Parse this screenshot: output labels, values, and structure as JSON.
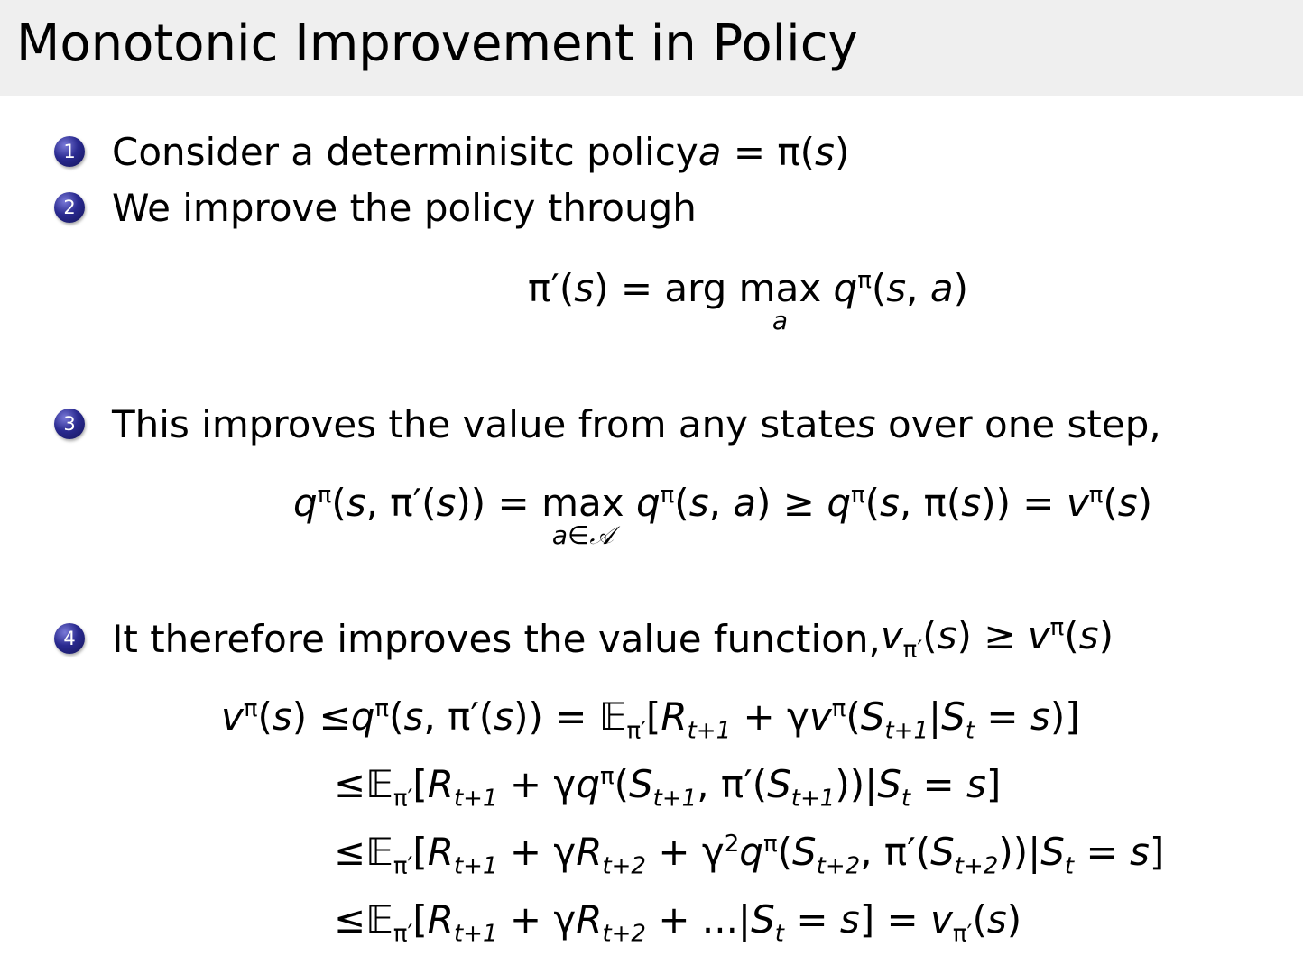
{
  "slide": {
    "title": "Monotonic Improvement in Policy",
    "bullet_color": "#2a2a90",
    "items": [
      {
        "number": "1",
        "text": "Consider a determinisitc policy ",
        "math": [
          [
            "a",
            "i"
          ],
          [
            " = π("
          ],
          [
            "s",
            "i"
          ],
          [
            ")"
          ]
        ]
      },
      {
        "number": "2",
        "text": "We improve the policy through",
        "math": []
      },
      {
        "number": "3",
        "text": "This improves the value from any state ",
        "math": [
          [
            "s",
            "i"
          ],
          [
            " over one step,"
          ]
        ]
      },
      {
        "number": "4",
        "text": "It therefore improves the value function, ",
        "math": [
          [
            "v",
            "i"
          ],
          [
            "π′",
            "sub"
          ],
          [
            "("
          ],
          [
            "s",
            "i"
          ],
          [
            ") ≥ "
          ],
          [
            "v",
            "i"
          ],
          [
            "π",
            "sup"
          ],
          [
            "("
          ],
          [
            "s",
            "i"
          ],
          [
            ")"
          ]
        ]
      }
    ],
    "equations": {
      "policy_improvement": {
        "lhs": [
          [
            "π′("
          ],
          [
            "s",
            "i"
          ],
          [
            ") = arg "
          ]
        ],
        "op": "max",
        "op_limit": "a",
        "rhs": [
          [
            "q",
            "i"
          ],
          [
            "π",
            "sup"
          ],
          [
            "("
          ],
          [
            "s",
            "i"
          ],
          [
            ", "
          ],
          [
            "a",
            "i"
          ],
          [
            ")"
          ]
        ]
      },
      "one_step": {
        "lhs": [
          [
            "q",
            "i"
          ],
          [
            "π",
            "sup"
          ],
          [
            "("
          ],
          [
            "s",
            "i"
          ],
          [
            ", π′("
          ],
          [
            "s",
            "i"
          ],
          [
            ")) = "
          ]
        ],
        "op": "max",
        "op_limit": "a∈𝒜",
        "rhs": [
          [
            "q",
            "i"
          ],
          [
            "π",
            "sup"
          ],
          [
            "("
          ],
          [
            "s",
            "i"
          ],
          [
            ", "
          ],
          [
            "a",
            "i"
          ],
          [
            ") ≥ "
          ],
          [
            "q",
            "i"
          ],
          [
            "π",
            "sup"
          ],
          [
            "("
          ],
          [
            "s",
            "i"
          ],
          [
            ", π("
          ],
          [
            "s",
            "i"
          ],
          [
            ")) = "
          ],
          [
            "v",
            "i"
          ],
          [
            "π",
            "sup"
          ],
          [
            "("
          ],
          [
            "s",
            "i"
          ],
          [
            ")"
          ]
        ]
      },
      "chain": [
        [
          [
            "v",
            "i"
          ],
          [
            "π",
            "sup"
          ],
          [
            "("
          ],
          [
            "s",
            "i"
          ],
          [
            ") ≤"
          ],
          [
            "q",
            "i"
          ],
          [
            "π",
            "sup"
          ],
          [
            "("
          ],
          [
            "s",
            "i"
          ],
          [
            ", π′("
          ],
          [
            "s",
            "i"
          ],
          [
            ")) = 𝔼"
          ],
          [
            "π′",
            "sub"
          ],
          [
            "["
          ],
          [
            "R",
            "i"
          ],
          [
            "t+1",
            "subi"
          ],
          [
            " + γ"
          ],
          [
            "v",
            "i"
          ],
          [
            "π",
            "sup"
          ],
          [
            "("
          ],
          [
            "S",
            "i"
          ],
          [
            "t+1",
            "subi"
          ],
          [
            "|"
          ],
          [
            "S",
            "i"
          ],
          [
            "t",
            "subi"
          ],
          [
            " = "
          ],
          [
            "s",
            "i"
          ],
          [
            ")]"
          ]
        ],
        [
          [
            "≤𝔼"
          ],
          [
            "π′",
            "sub"
          ],
          [
            "["
          ],
          [
            "R",
            "i"
          ],
          [
            "t+1",
            "subi"
          ],
          [
            " + γ"
          ],
          [
            "q",
            "i"
          ],
          [
            "π",
            "sup"
          ],
          [
            "("
          ],
          [
            "S",
            "i"
          ],
          [
            "t+1",
            "subi"
          ],
          [
            ", π′("
          ],
          [
            "S",
            "i"
          ],
          [
            "t+1",
            "subi"
          ],
          [
            "))|"
          ],
          [
            "S",
            "i"
          ],
          [
            "t",
            "subi"
          ],
          [
            " = "
          ],
          [
            "s",
            "i"
          ],
          [
            "]"
          ]
        ],
        [
          [
            "≤𝔼"
          ],
          [
            "π′",
            "sub"
          ],
          [
            "["
          ],
          [
            "R",
            "i"
          ],
          [
            "t+1",
            "subi"
          ],
          [
            " + γ"
          ],
          [
            "R",
            "i"
          ],
          [
            "t+2",
            "subi"
          ],
          [
            " + γ"
          ],
          [
            "2",
            "sup"
          ],
          [
            "q",
            "i"
          ],
          [
            "π",
            "sup"
          ],
          [
            "("
          ],
          [
            "S",
            "i"
          ],
          [
            "t+2",
            "subi"
          ],
          [
            ", π′("
          ],
          [
            "S",
            "i"
          ],
          [
            "t+2",
            "subi"
          ],
          [
            "))|"
          ],
          [
            "S",
            "i"
          ],
          [
            "t",
            "subi"
          ],
          [
            " = "
          ],
          [
            "s",
            "i"
          ],
          [
            "]"
          ]
        ],
        [
          [
            "≤𝔼"
          ],
          [
            "π′",
            "sub"
          ],
          [
            "["
          ],
          [
            "R",
            "i"
          ],
          [
            "t+1",
            "subi"
          ],
          [
            " + γ"
          ],
          [
            "R",
            "i"
          ],
          [
            "t+2",
            "subi"
          ],
          [
            " + ...|"
          ],
          [
            "S",
            "i"
          ],
          [
            "t",
            "subi"
          ],
          [
            " = "
          ],
          [
            "s",
            "i"
          ],
          [
            "] = "
          ],
          [
            "v",
            "i"
          ],
          [
            "π′",
            "sub"
          ],
          [
            "("
          ],
          [
            "s",
            "i"
          ],
          [
            ")"
          ]
        ]
      ]
    }
  }
}
